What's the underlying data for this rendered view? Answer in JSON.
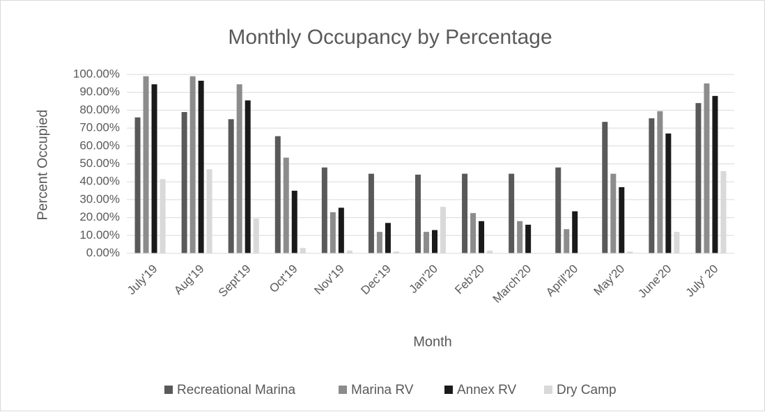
{
  "chart_data": {
    "type": "bar",
    "title": "Monthly Occupancy by Percentage",
    "x_label": "Month",
    "y_label": "Percent Occupied",
    "categories": [
      "July'19",
      "Aug'19",
      "Sept'19",
      "Oct'19",
      "Nov'19",
      "Dec'19",
      "Jan'20",
      "Feb'20",
      "March'20",
      "April'20",
      "May'20",
      "June'20",
      "July' 20"
    ],
    "series": [
      {
        "name": "Recreational Marina",
        "color": "#595959",
        "values": [
          76,
          79,
          75,
          65.5,
          48,
          44.5,
          44,
          44.5,
          44.5,
          48,
          73.5,
          75.5,
          84
        ]
      },
      {
        "name": "Marina RV",
        "color": "#8c8c8c",
        "values": [
          99,
          99,
          94.5,
          53.5,
          23,
          12,
          12,
          22.5,
          18,
          13.5,
          44.5,
          79.5,
          95
        ]
      },
      {
        "name": "Annex RV",
        "color": "#1a1a1a",
        "values": [
          94.5,
          96.5,
          85.5,
          35,
          25.5,
          17,
          13,
          18,
          16,
          23.5,
          37,
          67,
          88
        ]
      },
      {
        "name": "Dry Camp",
        "color": "#d9d9d9",
        "values": [
          41.5,
          47,
          19.5,
          3,
          1.5,
          1,
          26,
          1.5,
          0,
          0,
          1,
          12,
          46
        ]
      }
    ],
    "ylim": [
      0,
      100
    ],
    "yticks": [
      {
        "value": 0,
        "label": "0.00%"
      },
      {
        "value": 10,
        "label": "10.00%"
      },
      {
        "value": 20,
        "label": "20.00%"
      },
      {
        "value": 30,
        "label": "30.00%"
      },
      {
        "value": 40,
        "label": "40.00%"
      },
      {
        "value": 50,
        "label": "50.00%"
      },
      {
        "value": 60,
        "label": "60.00%"
      },
      {
        "value": 70,
        "label": "70.00%"
      },
      {
        "value": 80,
        "label": "80.00%"
      },
      {
        "value": 90,
        "label": "90.00%"
      },
      {
        "value": 100,
        "label": "100.00%"
      }
    ],
    "grid": true,
    "legend": "bottom"
  }
}
